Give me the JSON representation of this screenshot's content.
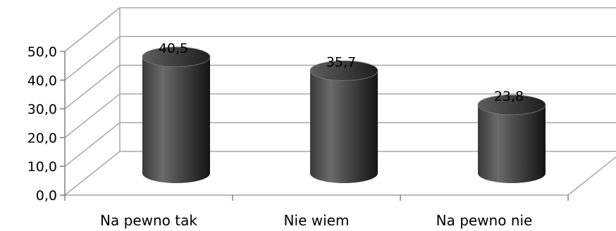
{
  "chart_data": {
    "type": "bar",
    "style": "3d-cylinder",
    "categories": [
      "Na pewno tak",
      "Nie wiem",
      "Na pewno nie"
    ],
    "values": [
      40.5,
      35.7,
      23.8
    ],
    "value_labels": [
      "40,5",
      "35,7",
      "23,8"
    ],
    "y_ticks": [
      "0,0",
      "10,0",
      "20,0",
      "30,0",
      "40,0",
      "50,0"
    ],
    "ylim": [
      0,
      50
    ],
    "grid": true,
    "legend": "none",
    "colors": {
      "bar": "#5a5a5a",
      "bar_dark": "#1c1c1c",
      "bar_light": "#8f8f8f",
      "grid": "#a6a6a6"
    }
  }
}
